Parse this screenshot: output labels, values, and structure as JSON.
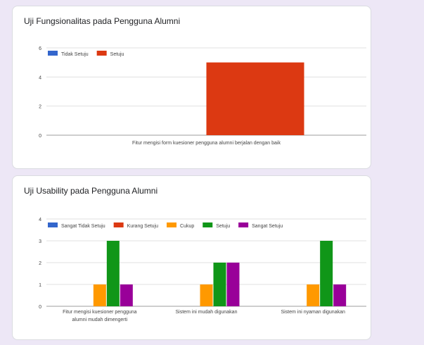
{
  "cards": [
    {
      "title": "Uji Fungsionalitas pada Pengguna Alumni",
      "chart_data": {
        "type": "bar",
        "ylim": [
          0,
          6
        ],
        "yticks": [
          0,
          2,
          4,
          6
        ],
        "categories": [
          "Fitur mengisi form kuesioner pengguna alumni berjalan dengan baik"
        ],
        "legend_position": "top-left",
        "grid": true,
        "series": [
          {
            "name": "Tidak Setuju",
            "color": "#3366cc",
            "values": [
              0
            ]
          },
          {
            "name": "Setuju",
            "color": "#dc3912",
            "values": [
              5
            ]
          }
        ]
      }
    },
    {
      "title": "Uji Usability pada Pengguna Alumni",
      "chart_data": {
        "type": "bar",
        "ylim": [
          0,
          4
        ],
        "yticks": [
          0,
          1,
          2,
          3,
          4
        ],
        "categories": [
          [
            "Fitur mengisi kuesioner pengguna",
            "alumni mudah dimengerti"
          ],
          [
            "Sistem ini mudah digunakan"
          ],
          [
            "Sistem ini nyaman digunakan"
          ]
        ],
        "legend_position": "top-left",
        "grid": true,
        "series": [
          {
            "name": "Sangat Tidak Setuju",
            "color": "#3366cc",
            "values": [
              0,
              0,
              0
            ]
          },
          {
            "name": "Kurang Setuju",
            "color": "#dc3912",
            "values": [
              0,
              0,
              0
            ]
          },
          {
            "name": "Cukup",
            "color": "#ff9900",
            "values": [
              1,
              1,
              1
            ]
          },
          {
            "name": "Setuju",
            "color": "#109618",
            "values": [
              3,
              2,
              3
            ]
          },
          {
            "name": "Sangat Setuju",
            "color": "#990099",
            "values": [
              1,
              2,
              1
            ]
          }
        ]
      }
    }
  ]
}
